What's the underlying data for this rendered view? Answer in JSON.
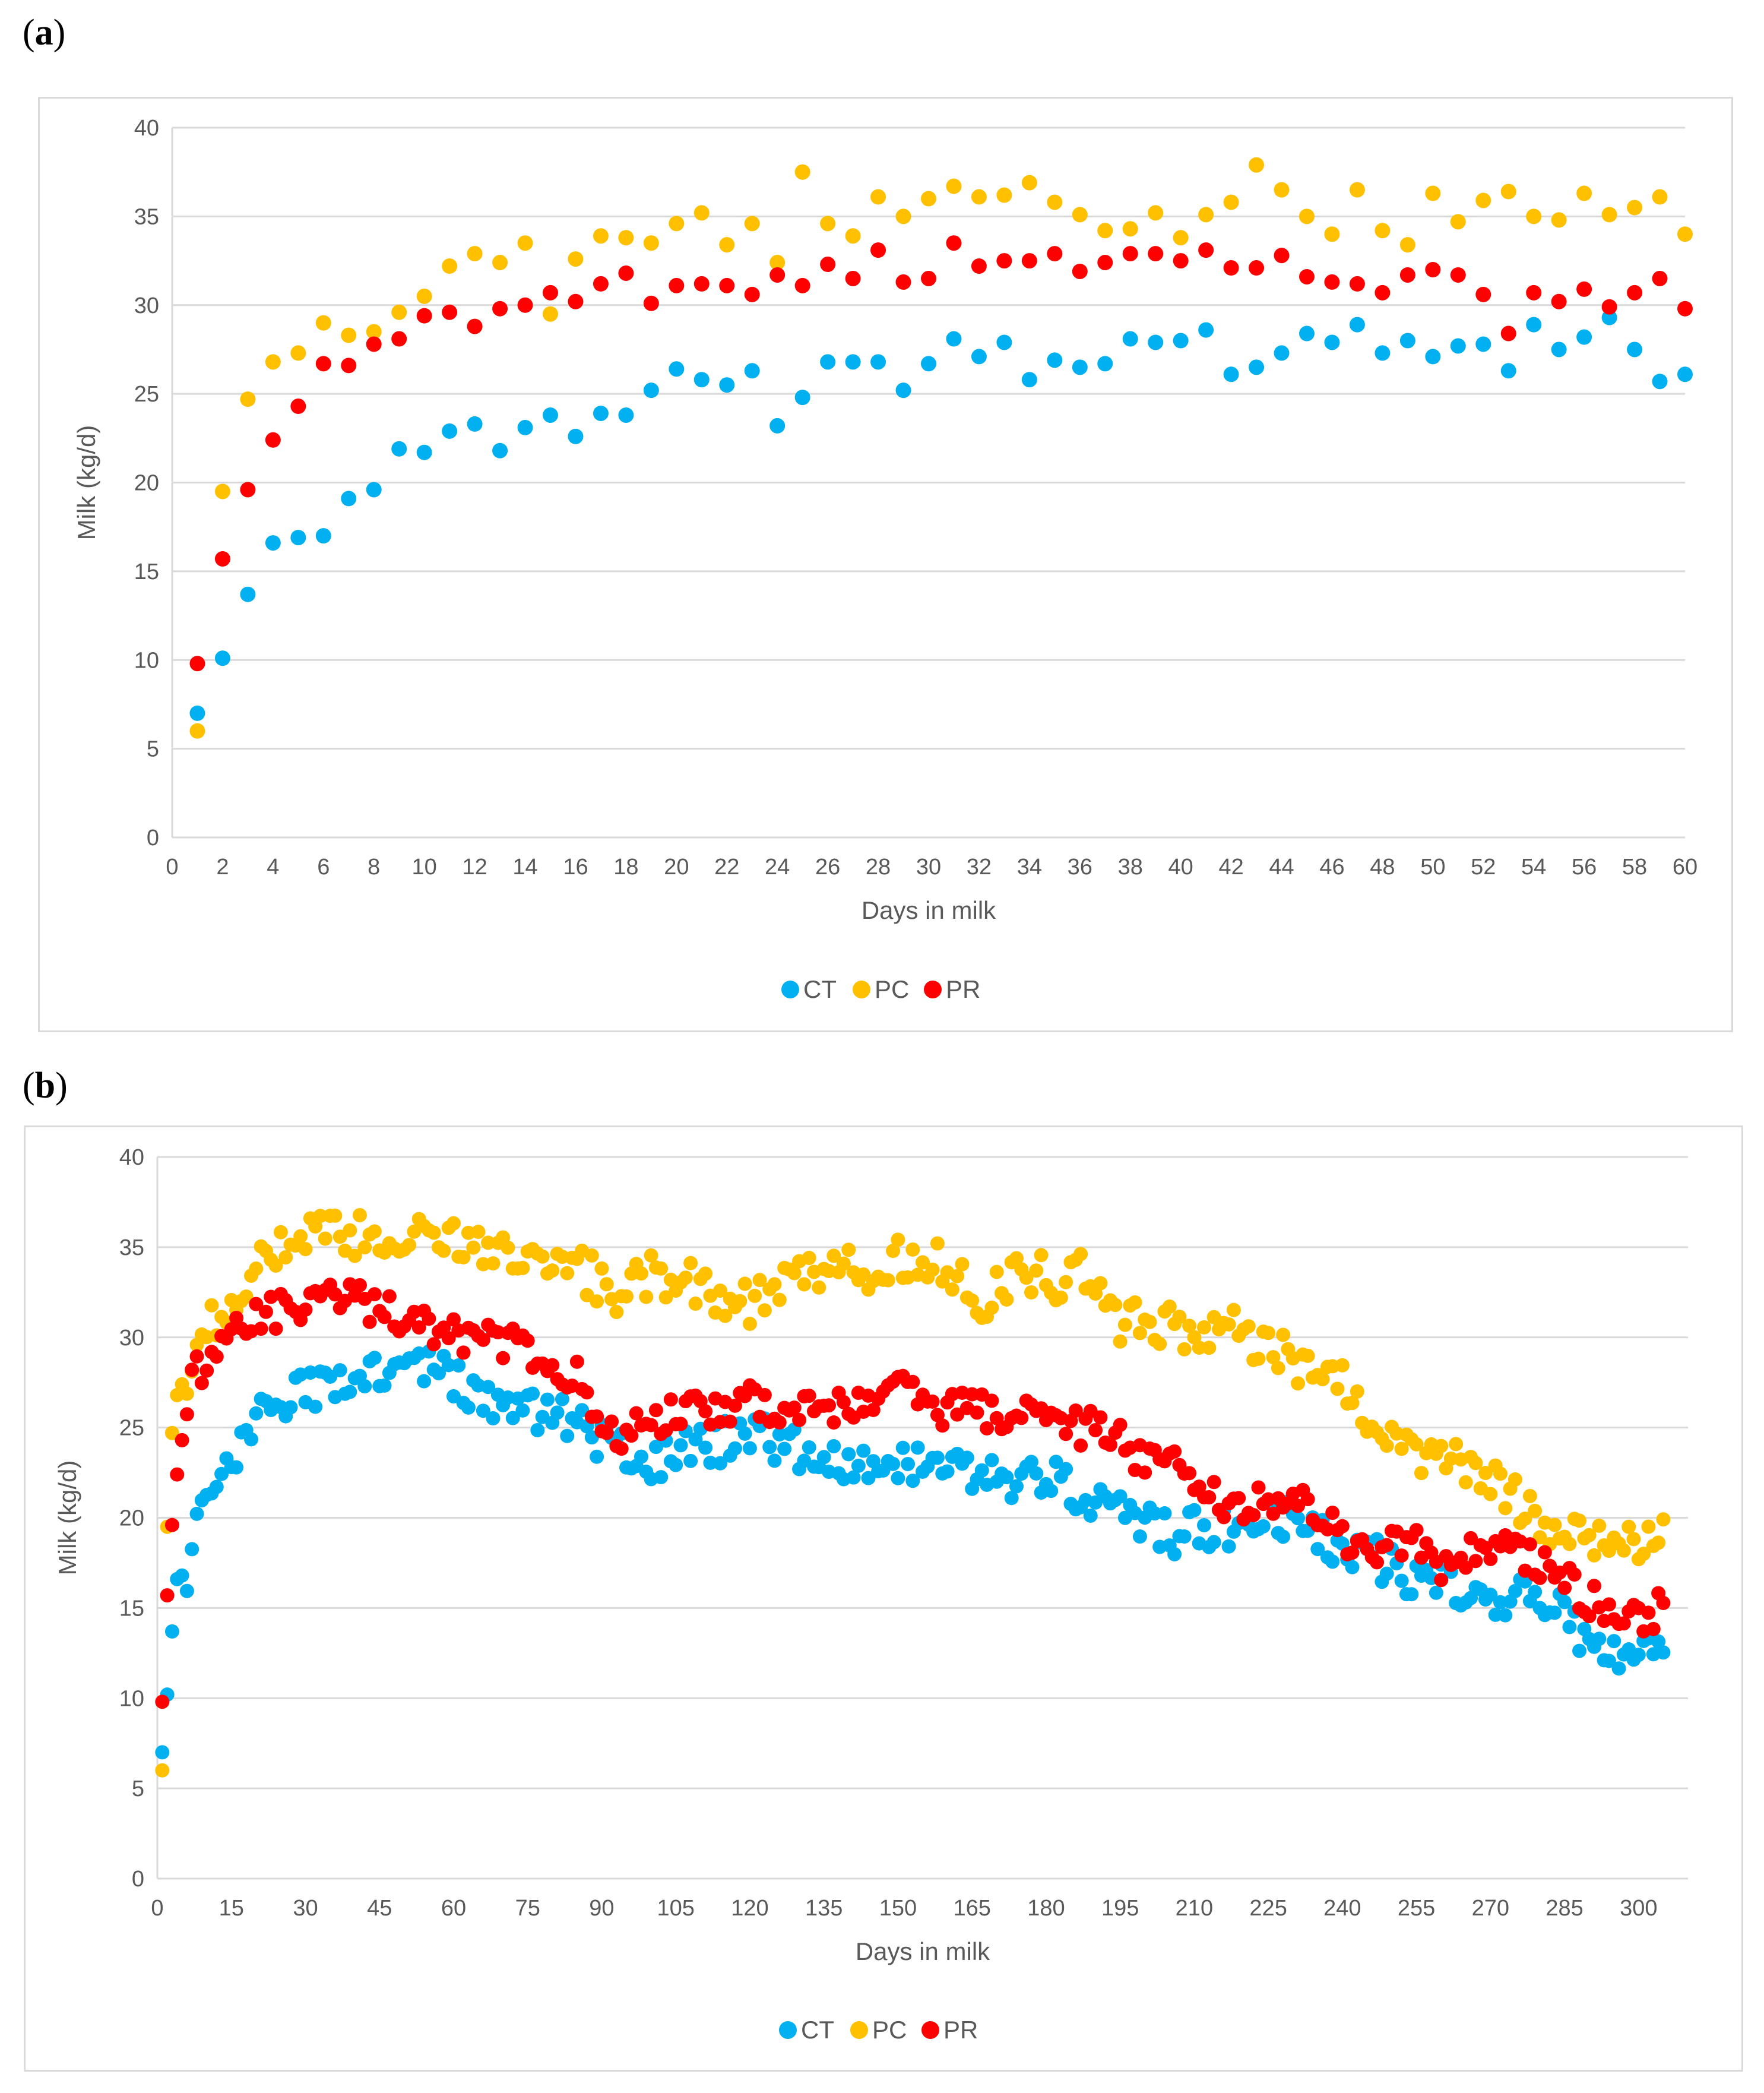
{
  "colors": {
    "CT": "#00b0f0",
    "PC": "#ffc000",
    "PR": "#ff0000",
    "grid": "#d9d9d9",
    "axis": "#595959"
  },
  "chart_data": [
    {
      "panel_label": "a",
      "type": "scatter",
      "xlabel": "Days in milk",
      "ylabel": "Milk (kg/d)",
      "xlim": [
        0,
        60
      ],
      "ylim": [
        0,
        40
      ],
      "x_ticks": [
        "0",
        "2",
        "4",
        "6",
        "8",
        "10",
        "12",
        "14",
        "16",
        "18",
        "20",
        "22",
        "24",
        "26",
        "28",
        "30",
        "32",
        "34",
        "36",
        "38",
        "40",
        "42",
        "44",
        "46",
        "48",
        "50",
        "52",
        "54",
        "56",
        "58",
        "60"
      ],
      "y_ticks": [
        "0",
        "5",
        "10",
        "15",
        "20",
        "25",
        "30",
        "35",
        "40"
      ],
      "grid": true,
      "legend_position": "bottom",
      "legend": [
        "CT",
        "PC",
        "PR"
      ],
      "x": [
        1,
        2,
        3,
        4,
        5,
        6,
        7,
        8,
        9,
        10,
        11,
        12,
        13,
        14,
        15,
        16,
        17,
        18,
        19,
        20,
        21,
        22,
        23,
        24,
        25,
        26,
        27,
        28,
        29,
        30,
        31,
        32,
        33,
        34,
        35,
        36,
        37,
        38,
        39,
        40,
        41,
        42,
        43,
        44,
        45,
        46,
        47,
        48,
        49,
        50,
        51,
        52,
        53,
        54,
        55,
        56,
        57,
        58,
        59,
        60
      ],
      "series": [
        {
          "name": "CT",
          "values": [
            7.0,
            10.1,
            13.7,
            16.6,
            16.9,
            17.0,
            19.1,
            19.6,
            21.9,
            21.7,
            22.9,
            23.3,
            21.8,
            23.1,
            23.8,
            22.6,
            23.9,
            23.8,
            25.2,
            26.4,
            25.8,
            25.5,
            26.3,
            23.2,
            24.8,
            26.8,
            26.8,
            26.8,
            25.2,
            26.7,
            28.1,
            27.1,
            27.9,
            25.8,
            26.9,
            26.5,
            26.7,
            28.1,
            27.9,
            28.0,
            28.6,
            26.1,
            26.5,
            27.3,
            28.4,
            27.9,
            28.9,
            27.3,
            28.0,
            27.1,
            27.7,
            27.8,
            26.3,
            28.9,
            27.5,
            28.2,
            29.3,
            27.5,
            25.7,
            26.1
          ]
        },
        {
          "name": "PC",
          "values": [
            6.0,
            19.5,
            24.7,
            26.8,
            27.3,
            29.0,
            28.3,
            28.5,
            29.6,
            30.5,
            32.2,
            32.9,
            32.4,
            33.5,
            29.5,
            32.6,
            33.9,
            33.8,
            33.5,
            34.6,
            35.2,
            33.4,
            34.6,
            32.4,
            37.5,
            34.6,
            33.9,
            36.1,
            35.0,
            36.0,
            36.7,
            36.1,
            36.2,
            36.9,
            35.8,
            35.1,
            34.2,
            34.3,
            35.2,
            33.8,
            35.1,
            35.8,
            37.9,
            36.5,
            35.0,
            34.0,
            36.5,
            34.2,
            33.4,
            36.3,
            34.7,
            35.9,
            36.4,
            35.0,
            34.8,
            36.3,
            35.1,
            35.5,
            36.1,
            34.0
          ]
        },
        {
          "name": "PR",
          "values": [
            9.8,
            15.7,
            19.6,
            22.4,
            24.3,
            26.7,
            26.6,
            27.8,
            28.1,
            29.4,
            29.6,
            28.8,
            29.8,
            30.0,
            30.7,
            30.2,
            31.2,
            31.8,
            30.1,
            31.1,
            31.2,
            31.1,
            30.6,
            31.7,
            31.1,
            32.3,
            31.5,
            33.1,
            31.3,
            31.5,
            33.5,
            32.2,
            32.5,
            32.5,
            32.9,
            31.9,
            32.4,
            32.9,
            32.9,
            32.5,
            33.1,
            32.1,
            32.1,
            32.8,
            31.6,
            31.3,
            31.2,
            30.7,
            31.7,
            32.0,
            31.7,
            30.6,
            28.4,
            30.7,
            30.2,
            30.9,
            29.9,
            30.7,
            31.5,
            29.8
          ]
        }
      ]
    },
    {
      "panel_label": "b",
      "type": "scatter",
      "xlabel": "Days in milk",
      "ylabel": "Milk (kg/d)",
      "xlim": [
        0,
        310
      ],
      "ylim": [
        0,
        40
      ],
      "x_ticks": [
        "0",
        "15",
        "30",
        "45",
        "60",
        "75",
        "90",
        "105",
        "120",
        "135",
        "150",
        "165",
        "180",
        "195",
        "210",
        "225",
        "240",
        "255",
        "270",
        "285",
        "300"
      ],
      "y_ticks": [
        "0",
        "5",
        "10",
        "15",
        "20",
        "25",
        "30",
        "35",
        "40"
      ],
      "grid": true,
      "legend_position": "bottom",
      "legend": [
        "CT",
        "PC",
        "PR"
      ],
      "x_start": 1,
      "x_end": 305,
      "series": [
        {
          "name": "CT",
          "anchors": [
            [
              1,
              7.0
            ],
            [
              2,
              10.2
            ],
            [
              3,
              13.7
            ],
            [
              4,
              16.6
            ],
            [
              6,
              17.0
            ],
            [
              8,
              19.5
            ],
            [
              10,
              21.9
            ],
            [
              13,
              23.0
            ],
            [
              18,
              24.0
            ],
            [
              22,
              26.0
            ],
            [
              30,
              27.0
            ],
            [
              40,
              27.5
            ],
            [
              48,
              28.0
            ],
            [
              55,
              28.5
            ],
            [
              60,
              27.5
            ],
            [
              70,
              26.0
            ],
            [
              78,
              26.0
            ],
            [
              85,
              25.0
            ],
            [
              92,
              24.0
            ],
            [
              100,
              23.0
            ],
            [
              110,
              24.0
            ],
            [
              120,
              24.5
            ],
            [
              128,
              24.0
            ],
            [
              135,
              23.5
            ],
            [
              145,
              22.5
            ],
            [
              155,
              23.0
            ],
            [
              165,
              22.5
            ],
            [
              175,
              22.0
            ],
            [
              183,
              22.0
            ],
            [
              188,
              20.5
            ],
            [
              195,
              20.5
            ],
            [
              205,
              19.0
            ],
            [
              215,
              19.5
            ],
            [
              222,
              19.8
            ],
            [
              230,
              20.0
            ],
            [
              238,
              18.5
            ],
            [
              245,
              18.0
            ],
            [
              252,
              17.0
            ],
            [
              260,
              16.5
            ],
            [
              268,
              15.5
            ],
            [
              275,
              15.8
            ],
            [
              282,
              15.5
            ],
            [
              288,
              13.5
            ],
            [
              292,
              12.5
            ],
            [
              300,
              13.0
            ],
            [
              305,
              13.5
            ]
          ],
          "noise": 1.2
        },
        {
          "name": "PC",
          "anchors": [
            [
              1,
              6.0
            ],
            [
              2,
              19.5
            ],
            [
              3,
              24.7
            ],
            [
              4,
              26.8
            ],
            [
              6,
              28.0
            ],
            [
              10,
              30.5
            ],
            [
              15,
              32.5
            ],
            [
              20,
              34.0
            ],
            [
              30,
              35.5
            ],
            [
              40,
              35.5
            ],
            [
              50,
              35.5
            ],
            [
              60,
              35.5
            ],
            [
              70,
              35.0
            ],
            [
              78,
              34.5
            ],
            [
              85,
              34.0
            ],
            [
              92,
              32.5
            ],
            [
              100,
              33.5
            ],
            [
              108,
              33.0
            ],
            [
              115,
              31.5
            ],
            [
              122,
              32.0
            ],
            [
              130,
              33.0
            ],
            [
              138,
              33.5
            ],
            [
              145,
              34.0
            ],
            [
              152,
              34.5
            ],
            [
              158,
              34.5
            ],
            [
              162,
              33.0
            ],
            [
              168,
              32.0
            ],
            [
              175,
              34.0
            ],
            [
              182,
              33.0
            ],
            [
              188,
              34.0
            ],
            [
              193,
              31.0
            ],
            [
              200,
              30.5
            ],
            [
              208,
              30.5
            ],
            [
              215,
              30.5
            ],
            [
              222,
              30.0
            ],
            [
              228,
              29.0
            ],
            [
              235,
              28.0
            ],
            [
              242,
              27.0
            ],
            [
              248,
              25.0
            ],
            [
              255,
              23.5
            ],
            [
              262,
              23.0
            ],
            [
              268,
              22.8
            ],
            [
              275,
              21.0
            ],
            [
              282,
              19.5
            ],
            [
              288,
              19.5
            ],
            [
              295,
              18.5
            ],
            [
              300,
              18.5
            ],
            [
              305,
              19.5
            ]
          ],
          "noise": 1.3
        },
        {
          "name": "PR",
          "anchors": [
            [
              1,
              9.8
            ],
            [
              2,
              15.7
            ],
            [
              3,
              19.6
            ],
            [
              4,
              22.4
            ],
            [
              5,
              24.3
            ],
            [
              6,
              26.6
            ],
            [
              8,
              28.0
            ],
            [
              12,
              29.5
            ],
            [
              18,
              31.0
            ],
            [
              25,
              31.5
            ],
            [
              35,
              32.5
            ],
            [
              45,
              31.5
            ],
            [
              55,
              30.5
            ],
            [
              65,
              30.0
            ],
            [
              72,
              29.5
            ],
            [
              78,
              28.5
            ],
            [
              85,
              28.0
            ],
            [
              90,
              25.5
            ],
            [
              93,
              24.0
            ],
            [
              98,
              26.0
            ],
            [
              103,
              25.5
            ],
            [
              110,
              26.0
            ],
            [
              120,
              26.5
            ],
            [
              128,
              26.0
            ],
            [
              135,
              26.0
            ],
            [
              142,
              26.5
            ],
            [
              150,
              27.5
            ],
            [
              158,
              26.0
            ],
            [
              165,
              26.0
            ],
            [
              172,
              25.5
            ],
            [
              180,
              26.0
            ],
            [
              187,
              25.0
            ],
            [
              192,
              25.0
            ],
            [
              198,
              23.5
            ],
            [
              205,
              23.0
            ],
            [
              212,
              21.5
            ],
            [
              218,
              20.5
            ],
            [
              224,
              21.0
            ],
            [
              230,
              21.0
            ],
            [
              236,
              20.0
            ],
            [
              242,
              18.5
            ],
            [
              248,
              18.5
            ],
            [
              255,
              18.5
            ],
            [
              262,
              17.0
            ],
            [
              268,
              18.5
            ],
            [
              274,
              18.5
            ],
            [
              280,
              17.5
            ],
            [
              285,
              16.5
            ],
            [
              290,
              15.5
            ],
            [
              296,
              15.0
            ],
            [
              300,
              14.5
            ],
            [
              305,
              15.0
            ]
          ],
          "noise": 1.0
        }
      ]
    }
  ]
}
